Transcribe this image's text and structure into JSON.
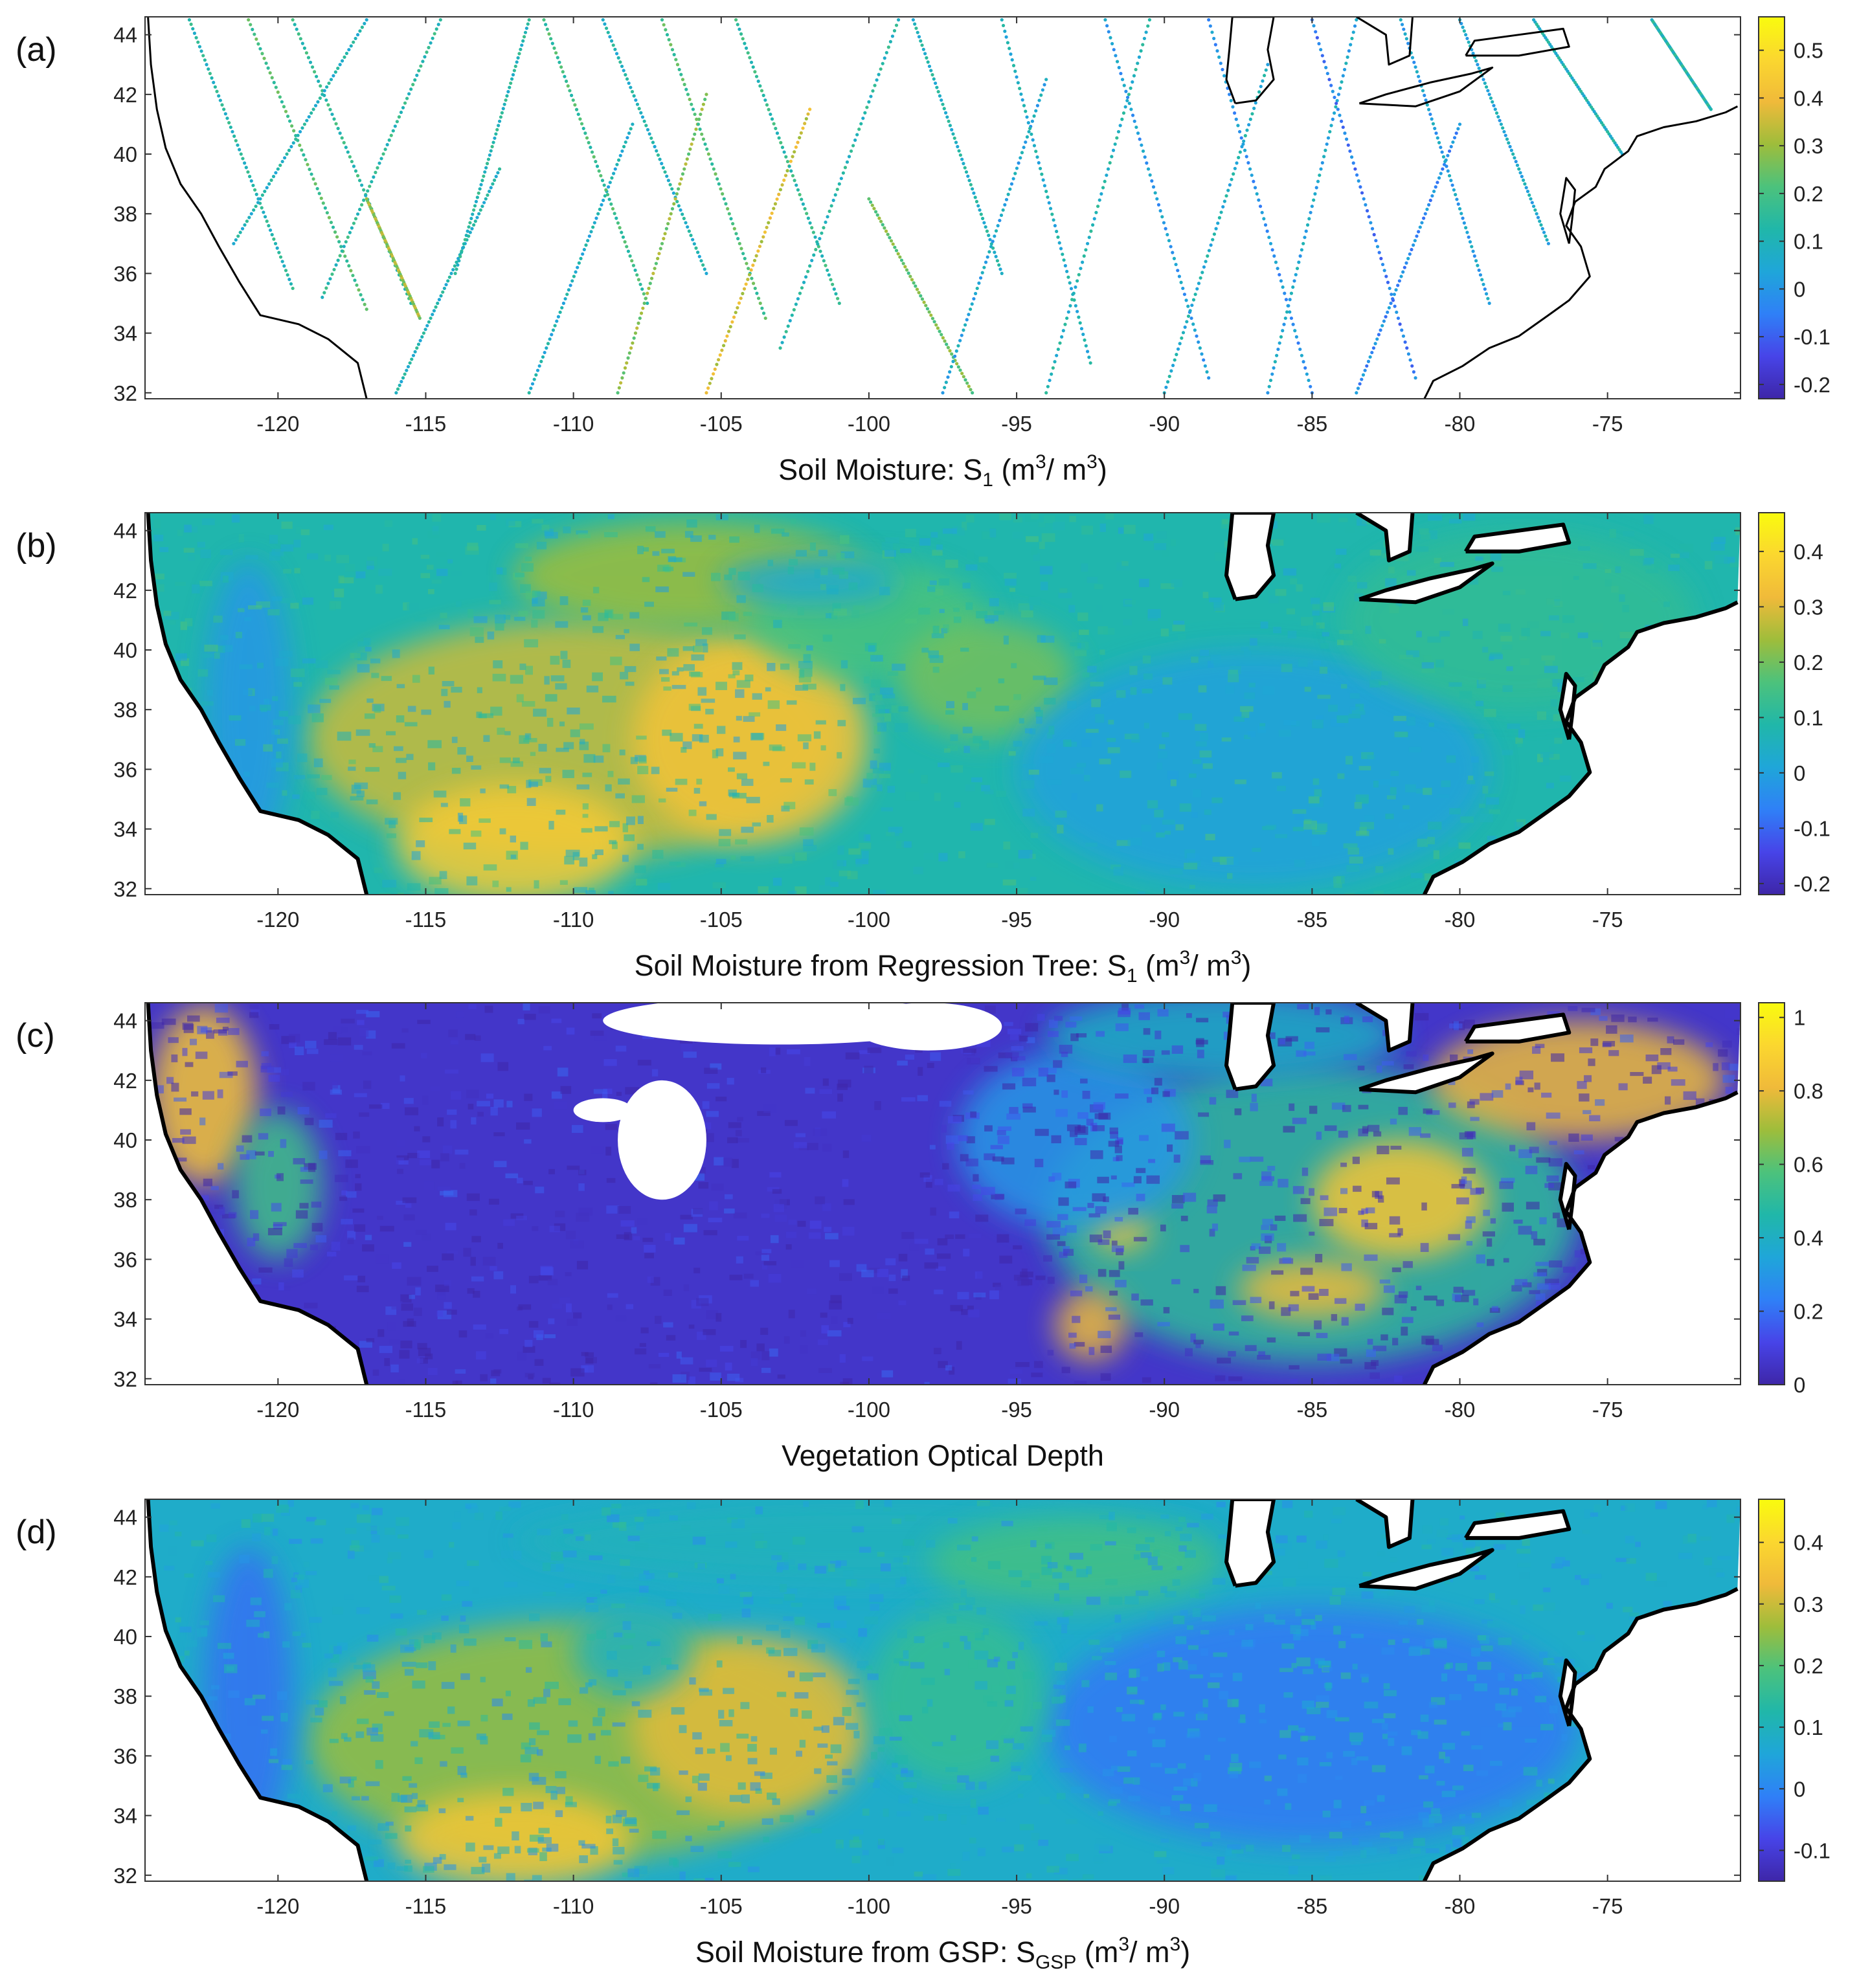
{
  "figure": {
    "colormap": [
      "#3e26a8",
      "#4744e8",
      "#2f80f7",
      "#1fa6d9",
      "#20b7a9",
      "#4cc27c",
      "#9ebd3b",
      "#f0ba3a",
      "#fbd72f",
      "#f9fb0e"
    ]
  },
  "chart_data": [
    {
      "panel": "(a)",
      "type": "scatter",
      "xlabel": {
        "main": "Soil Moisture: S",
        "sub": "1",
        "mid": " (m",
        "sup1": "3",
        "mid2": "/ m",
        "sup2": "3",
        "end": ")"
      },
      "xlim": [
        -124.5,
        -70.5
      ],
      "ylim": [
        31.8,
        44.6
      ],
      "x_ticks": [
        -120,
        -115,
        -110,
        -105,
        -100,
        -95,
        -90,
        -85,
        -80,
        -75
      ],
      "y_ticks": [
        32,
        34,
        36,
        38,
        40,
        42,
        44
      ],
      "colorbar": {
        "range": [
          -0.23,
          0.57
        ],
        "ticks": [
          -0.2,
          -0.1,
          0,
          0.1,
          0.2,
          0.3,
          0.4,
          0.5
        ]
      },
      "swaths": [
        {
          "x0": -123.0,
          "y0": 44.5,
          "x1": -119.5,
          "y1": 35.5,
          "v": 0.12
        },
        {
          "x0": -121.0,
          "y0": 44.5,
          "x1": -117.0,
          "y1": 34.8,
          "v": 0.2
        },
        {
          "x0": -119.5,
          "y0": 44.5,
          "x1": -115.5,
          "y1": 35.0,
          "v": 0.15
        },
        {
          "x0": -117.0,
          "y0": 38.5,
          "x1": -115.2,
          "y1": 34.5,
          "v": 0.3
        },
        {
          "x0": -121.5,
          "y0": 37.0,
          "x1": -117.0,
          "y1": 44.5,
          "v": 0.1
        },
        {
          "x0": -118.5,
          "y0": 35.2,
          "x1": -114.5,
          "y1": 44.5,
          "v": 0.14
        },
        {
          "x0": -116.0,
          "y0": 32.0,
          "x1": -112.5,
          "y1": 39.5,
          "v": 0.1
        },
        {
          "x0": -114.0,
          "y0": 36.0,
          "x1": -111.5,
          "y1": 44.5,
          "v": 0.12
        },
        {
          "x0": -111.5,
          "y0": 32.0,
          "x1": -108.0,
          "y1": 41.0,
          "v": 0.08
        },
        {
          "x0": -111.0,
          "y0": 44.5,
          "x1": -107.5,
          "y1": 35.0,
          "v": 0.18
        },
        {
          "x0": -109.0,
          "y0": 44.5,
          "x1": -105.5,
          "y1": 36.0,
          "v": 0.1
        },
        {
          "x0": -108.5,
          "y0": 32.0,
          "x1": -105.5,
          "y1": 42.0,
          "v": 0.28
        },
        {
          "x0": -107.0,
          "y0": 44.5,
          "x1": -103.5,
          "y1": 34.5,
          "v": 0.2
        },
        {
          "x0": -105.5,
          "y0": 32.0,
          "x1": -102.0,
          "y1": 41.5,
          "v": 0.36
        },
        {
          "x0": -104.5,
          "y0": 44.5,
          "x1": -101.0,
          "y1": 35.0,
          "v": 0.15
        },
        {
          "x0": -103.0,
          "y0": 33.5,
          "x1": -99.0,
          "y1": 44.5,
          "v": 0.12
        },
        {
          "x0": -100.0,
          "y0": 38.5,
          "x1": -96.5,
          "y1": 32.0,
          "v": 0.25
        },
        {
          "x0": -98.5,
          "y0": 44.5,
          "x1": -95.5,
          "y1": 36.0,
          "v": 0.1
        },
        {
          "x0": -97.5,
          "y0": 32.0,
          "x1": -94.0,
          "y1": 42.5,
          "v": 0.05
        },
        {
          "x0": -95.5,
          "y0": 44.5,
          "x1": -92.5,
          "y1": 33.0,
          "v": 0.08
        },
        {
          "x0": -94.0,
          "y0": 32.0,
          "x1": -90.5,
          "y1": 44.5,
          "v": 0.1
        },
        {
          "x0": -92.0,
          "y0": 44.5,
          "x1": -88.5,
          "y1": 32.5,
          "v": 0.02
        },
        {
          "x0": -90.0,
          "y0": 32.0,
          "x1": -86.5,
          "y1": 43.0,
          "v": 0.08
        },
        {
          "x0": -88.5,
          "y0": 44.5,
          "x1": -85.0,
          "y1": 32.0,
          "v": 0.0
        },
        {
          "x0": -86.5,
          "y0": 32.0,
          "x1": -83.5,
          "y1": 44.5,
          "v": 0.05
        },
        {
          "x0": -85.0,
          "y0": 44.5,
          "x1": -81.5,
          "y1": 32.5,
          "v": -0.05
        },
        {
          "x0": -83.5,
          "y0": 32.0,
          "x1": -80.0,
          "y1": 41.0,
          "v": -0.02
        },
        {
          "x0": -82.0,
          "y0": 44.5,
          "x1": -79.0,
          "y1": 35.0,
          "v": 0.03
        },
        {
          "x0": -80.0,
          "y0": 44.5,
          "x1": -77.0,
          "y1": 37.0,
          "v": 0.06
        },
        {
          "x0": -77.5,
          "y0": 44.5,
          "x1": -74.5,
          "y1": 40.0,
          "v": 0.1
        },
        {
          "x0": -73.5,
          "y0": 44.5,
          "x1": -71.5,
          "y1": 41.5,
          "v": 0.12
        }
      ]
    },
    {
      "panel": "(b)",
      "type": "heatmap",
      "xlabel": {
        "main": "Soil Moisture from Regression Tree: S",
        "sub": "1",
        "mid": " (m",
        "sup1": "3",
        "mid2": "/ m",
        "sup2": "3",
        "end": ")"
      },
      "xlim": [
        -124.5,
        -70.5
      ],
      "ylim": [
        31.8,
        44.6
      ],
      "x_ticks": [
        -120,
        -115,
        -110,
        -105,
        -100,
        -95,
        -90,
        -85,
        -80,
        -75
      ],
      "y_ticks": [
        32,
        34,
        36,
        38,
        40,
        42,
        44
      ],
      "colorbar": {
        "range": [
          -0.22,
          0.47
        ],
        "ticks": [
          -0.2,
          -0.1,
          0,
          0.1,
          0.2,
          0.3,
          0.4
        ]
      },
      "background_value": 0.08,
      "blobs": [
        {
          "x": -110,
          "y": 37,
          "rx": 9,
          "ry": 4,
          "v": 0.28
        },
        {
          "x": -104,
          "y": 37,
          "rx": 4,
          "ry": 3.5,
          "v": 0.34
        },
        {
          "x": -112,
          "y": 33.5,
          "rx": 4,
          "ry": 2,
          "v": 0.36
        },
        {
          "x": -106,
          "y": 42.5,
          "rx": 6,
          "ry": 1.8,
          "v": 0.24
        },
        {
          "x": -100,
          "y": 41,
          "rx": 4,
          "ry": 2,
          "v": 0.16
        },
        {
          "x": -96,
          "y": 39,
          "rx": 3,
          "ry": 2,
          "v": 0.2
        },
        {
          "x": -121,
          "y": 38,
          "rx": 1.5,
          "ry": 5,
          "v": -0.02
        },
        {
          "x": -87,
          "y": 36,
          "rx": 8,
          "ry": 4,
          "v": 0.0
        },
        {
          "x": -102,
          "y": 42.3,
          "rx": 3,
          "ry": 0.8,
          "v": 0.02
        },
        {
          "x": -78,
          "y": 41,
          "rx": 6,
          "ry": 3,
          "v": 0.12
        }
      ]
    },
    {
      "panel": "(c)",
      "type": "heatmap",
      "xlabel": {
        "main": "Vegetation Optical Depth",
        "sub": "",
        "mid": "",
        "sup1": "",
        "mid2": "",
        "sup2": "",
        "end": ""
      },
      "xlim": [
        -124.5,
        -70.5
      ],
      "ylim": [
        31.8,
        44.6
      ],
      "x_ticks": [
        -120,
        -115,
        -110,
        -105,
        -100,
        -95,
        -90,
        -85,
        -80,
        -75
      ],
      "y_ticks": [
        32,
        34,
        36,
        38,
        40,
        42,
        44
      ],
      "colorbar": {
        "range": [
          0,
          1.04
        ],
        "ticks": [
          0,
          0.2,
          0.4,
          0.6,
          0.8,
          1
        ]
      },
      "background_value": 0.06,
      "blobs": [
        {
          "x": -122.5,
          "y": 41.5,
          "rx": 1.8,
          "ry": 3,
          "v": 0.85
        },
        {
          "x": -120,
          "y": 38.5,
          "rx": 1.5,
          "ry": 2.5,
          "v": 0.55
        },
        {
          "x": -85,
          "y": 37.5,
          "rx": 9,
          "ry": 5,
          "v": 0.5
        },
        {
          "x": -82,
          "y": 38,
          "rx": 3,
          "ry": 2,
          "v": 0.85
        },
        {
          "x": -76,
          "y": 42,
          "rx": 5,
          "ry": 2,
          "v": 0.8
        },
        {
          "x": -91.5,
          "y": 37,
          "rx": 1,
          "ry": 0.7,
          "v": 0.85
        },
        {
          "x": -92.5,
          "y": 33.8,
          "rx": 1.2,
          "ry": 1.2,
          "v": 0.8
        },
        {
          "x": -93,
          "y": 40,
          "rx": 4,
          "ry": 3,
          "v": 0.3
        },
        {
          "x": -88,
          "y": 43.5,
          "rx": 6,
          "ry": 1.5,
          "v": 0.4
        },
        {
          "x": -85,
          "y": 35,
          "rx": 2.5,
          "ry": 1,
          "v": 0.8
        }
      ],
      "holes": [
        {
          "x": -107,
          "y": 40,
          "rx": 1.5,
          "ry": 2,
          "v": null
        },
        {
          "x": -103,
          "y": 44,
          "rx": 6,
          "ry": 0.8,
          "v": null
        },
        {
          "x": -98,
          "y": 43.8,
          "rx": 2.5,
          "ry": 0.8,
          "v": null
        },
        {
          "x": -109,
          "y": 41,
          "rx": 1,
          "ry": 0.4,
          "v": null
        }
      ]
    },
    {
      "panel": "(d)",
      "type": "heatmap",
      "xlabel": {
        "main": "Soil Moisture from GSP: S",
        "sub": "GSP",
        "mid": " (m",
        "sup1": "3",
        "mid2": "/ m",
        "sup2": "3",
        "end": ")"
      },
      "xlim": [
        -124.5,
        -70.5
      ],
      "ylim": [
        31.8,
        44.6
      ],
      "x_ticks": [
        -120,
        -115,
        -110,
        -105,
        -100,
        -95,
        -90,
        -85,
        -80,
        -75
      ],
      "y_ticks": [
        32,
        34,
        36,
        38,
        40,
        42,
        44
      ],
      "colorbar": {
        "range": [
          -0.15,
          0.47
        ],
        "ticks": [
          -0.1,
          0,
          0.1,
          0.2,
          0.3,
          0.4
        ]
      },
      "background_value": 0.08,
      "blobs": [
        {
          "x": -110,
          "y": 36.5,
          "rx": 9,
          "ry": 4,
          "v": 0.26
        },
        {
          "x": -104,
          "y": 37,
          "rx": 4,
          "ry": 3,
          "v": 0.32
        },
        {
          "x": -112,
          "y": 33.2,
          "rx": 4,
          "ry": 1.6,
          "v": 0.36
        },
        {
          "x": -100,
          "y": 43.2,
          "rx": 12,
          "ry": 1.4,
          "v": 0.1
        },
        {
          "x": -108,
          "y": 39.5,
          "rx": 2,
          "ry": 1.5,
          "v": 0.1
        },
        {
          "x": -85,
          "y": 37,
          "rx": 9,
          "ry": 4,
          "v": -0.02
        },
        {
          "x": -121,
          "y": 38,
          "rx": 1.5,
          "ry": 5,
          "v": -0.03
        },
        {
          "x": -97,
          "y": 38,
          "rx": 3,
          "ry": 3,
          "v": 0.16
        },
        {
          "x": -93,
          "y": 42.5,
          "rx": 5,
          "ry": 1.5,
          "v": 0.18
        }
      ]
    }
  ]
}
